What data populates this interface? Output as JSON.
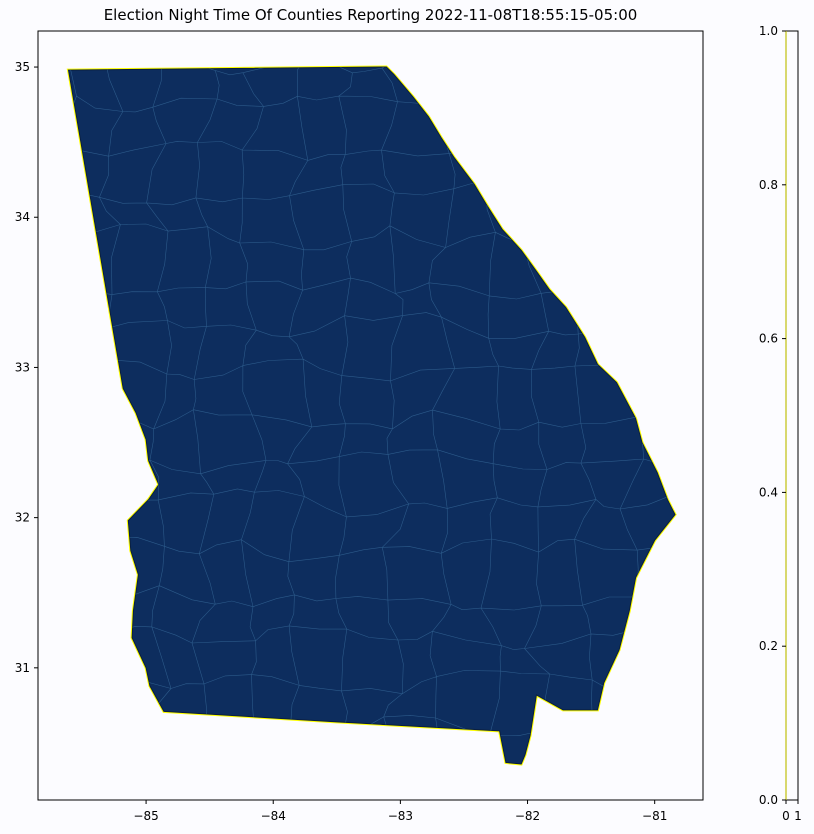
{
  "title": "Election Night Time Of Counties Reporting 2022-11-08T18:55:15-05:00",
  "map": {
    "x_range": [
      -85.85,
      -80.62
    ],
    "y_range": [
      30.12,
      35.24
    ],
    "x_ticks": [
      -85,
      -84,
      -83,
      -82,
      -81
    ],
    "x_tick_labels": [
      "−85",
      "−84",
      "−83",
      "−82",
      "−81"
    ],
    "y_ticks": [
      31,
      32,
      33,
      34,
      35
    ],
    "y_tick_labels": [
      "31",
      "32",
      "33",
      "34",
      "35"
    ],
    "fill_color": "#0d2d5e",
    "county_line_color": "#2c5a8a",
    "highlight_color": "#ffff00"
  },
  "colorbar": {
    "ticks": [
      0.0,
      0.2,
      0.4,
      0.6,
      0.8,
      1.0
    ],
    "tick_labels": [
      "0.0",
      "0.2",
      "0.4",
      "0.6",
      "0.8",
      "1.0"
    ],
    "x_tick_labels": [
      "0",
      "1"
    ]
  }
}
